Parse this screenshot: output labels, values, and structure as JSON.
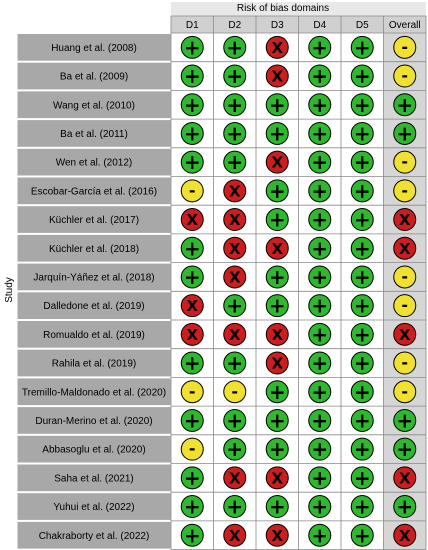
{
  "chart_data": {
    "type": "table",
    "title": "Risk of bias domains",
    "ylabel": "Study",
    "columns": [
      "D1",
      "D2",
      "D3",
      "D4",
      "D5",
      "Overall"
    ],
    "legend_symbols": {
      "low": "+",
      "some_concerns": "-",
      "high": "X"
    },
    "colors": {
      "low": "#2db82d",
      "some_concerns": "#f0e030",
      "high": "#cc1e1e",
      "row_header": "#a8a8a8",
      "header_bg": "#d0d0d0",
      "overall_bg": "#d6d6d6",
      "title_bg": "#e8e8e8"
    },
    "rows": [
      {
        "study": "Huang et al. (2008)",
        "ratings": [
          "+",
          "+",
          "X",
          "+",
          "+",
          "-"
        ]
      },
      {
        "study": "Ba et al. (2009)",
        "ratings": [
          "+",
          "+",
          "X",
          "+",
          "+",
          "-"
        ]
      },
      {
        "study": "Wang et al. (2010)",
        "ratings": [
          "+",
          "+",
          "+",
          "+",
          "+",
          "+"
        ]
      },
      {
        "study": "Ba et al. (2011)",
        "ratings": [
          "+",
          "+",
          "+",
          "+",
          "+",
          "+"
        ]
      },
      {
        "study": "Wen et al. (2012)",
        "ratings": [
          "+",
          "+",
          "X",
          "+",
          "+",
          "-"
        ]
      },
      {
        "study": "Escobar-García et al. (2016)",
        "ratings": [
          "-",
          "X",
          "+",
          "+",
          "+",
          "-"
        ]
      },
      {
        "study": "Küchler et al. (2017)",
        "ratings": [
          "X",
          "X",
          "+",
          "+",
          "+",
          "X"
        ]
      },
      {
        "study": "Küchler et al. (2018)",
        "ratings": [
          "+",
          "X",
          "X",
          "+",
          "+",
          "X"
        ]
      },
      {
        "study": "Jarquín-Yáñez et al. (2018)",
        "ratings": [
          "+",
          "X",
          "+",
          "+",
          "+",
          "-"
        ]
      },
      {
        "study": "Dalledone et al. (2019)",
        "ratings": [
          "X",
          "+",
          "+",
          "+",
          "+",
          "-"
        ]
      },
      {
        "study": "Romualdo et al. (2019)",
        "ratings": [
          "X",
          "X",
          "X",
          "+",
          "+",
          "X"
        ]
      },
      {
        "study": "Rahila et al. (2019)",
        "ratings": [
          "+",
          "+",
          "X",
          "+",
          "+",
          "-"
        ]
      },
      {
        "study": "Tremillo-Maldonado et al. (2020)",
        "ratings": [
          "-",
          "-",
          "+",
          "+",
          "+",
          "-"
        ]
      },
      {
        "study": "Duran-Merino et al. (2020)",
        "ratings": [
          "+",
          "+",
          "+",
          "+",
          "+",
          "+"
        ]
      },
      {
        "study": "Abbasoglu et al. (2020)",
        "ratings": [
          "-",
          "+",
          "+",
          "+",
          "+",
          "+"
        ]
      },
      {
        "study": "Saha et al. (2021)",
        "ratings": [
          "+",
          "X",
          "X",
          "+",
          "+",
          "X"
        ]
      },
      {
        "study": "Yuhui et al. (2022)",
        "ratings": [
          "+",
          "+",
          "+",
          "+",
          "+",
          "+"
        ]
      },
      {
        "study": "Chakraborty et al. (2022)",
        "ratings": [
          "+",
          "X",
          "X",
          "+",
          "+",
          "X"
        ]
      }
    ]
  }
}
